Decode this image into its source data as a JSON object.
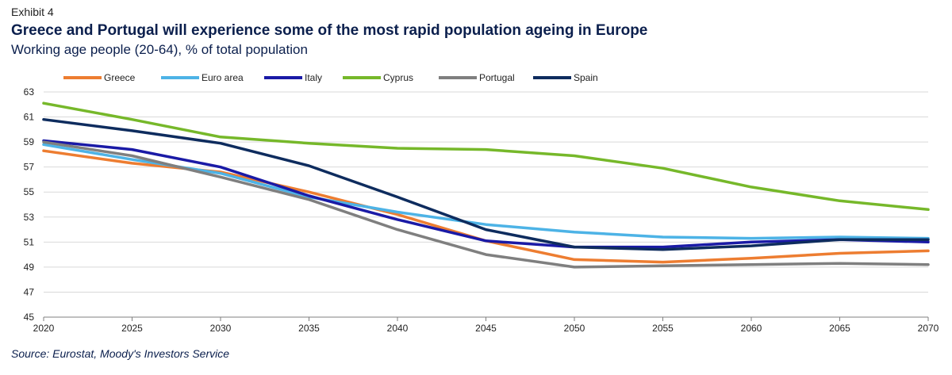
{
  "header": {
    "exhibit": "Exhibit 4",
    "title": "Greece and Portugal will experience some of the most rapid population ageing in Europe",
    "subtitle": "Working age people (20-64), % of total population"
  },
  "footer": {
    "source": "Source: Eurostat, Moody's Investors Service"
  },
  "chart_data": {
    "type": "line",
    "title": "Greece and Portugal will experience some of the most rapid population ageing in Europe",
    "subtitle": "Working age people (20-64), % of total population",
    "xlabel": "",
    "ylabel": "",
    "x": [
      2020,
      2025,
      2030,
      2035,
      2040,
      2045,
      2050,
      2055,
      2060,
      2065,
      2070
    ],
    "x_tick_labels": [
      "2020",
      "2025",
      "2030",
      "2035",
      "2040",
      "2045",
      "2050",
      "2055",
      "2060",
      "2065",
      "2070"
    ],
    "ylim": [
      45,
      63
    ],
    "y_ticks": [
      45,
      47,
      49,
      51,
      53,
      55,
      57,
      59,
      61,
      63
    ],
    "grid": true,
    "legend_position": "top",
    "series": [
      {
        "name": "Greece",
        "color": "#ed7d31",
        "values": [
          58.3,
          57.3,
          56.6,
          55.0,
          53.2,
          51.1,
          49.6,
          49.4,
          49.7,
          50.1,
          50.3
        ]
      },
      {
        "name": "Euro area",
        "color": "#4db3e6",
        "values": [
          58.8,
          57.6,
          56.5,
          54.6,
          53.4,
          52.4,
          51.8,
          51.4,
          51.3,
          51.4,
          51.3
        ]
      },
      {
        "name": "Italy",
        "color": "#1a1aa6",
        "values": [
          59.1,
          58.4,
          57.0,
          54.7,
          52.8,
          51.1,
          50.6,
          50.6,
          51.0,
          51.2,
          51.0
        ]
      },
      {
        "name": "Cyprus",
        "color": "#76b82a",
        "values": [
          62.1,
          60.8,
          59.4,
          58.9,
          58.5,
          58.4,
          57.9,
          56.9,
          55.4,
          54.3,
          53.6
        ]
      },
      {
        "name": "Portugal",
        "color": "#7f7f7f",
        "values": [
          59.0,
          57.9,
          56.2,
          54.4,
          52.0,
          50.0,
          49.0,
          49.1,
          49.2,
          49.3,
          49.2
        ]
      },
      {
        "name": "Spain",
        "color": "#0e2c5e",
        "values": [
          60.8,
          59.9,
          58.9,
          57.1,
          54.6,
          52.0,
          50.6,
          50.4,
          50.7,
          51.2,
          51.2
        ]
      }
    ]
  }
}
